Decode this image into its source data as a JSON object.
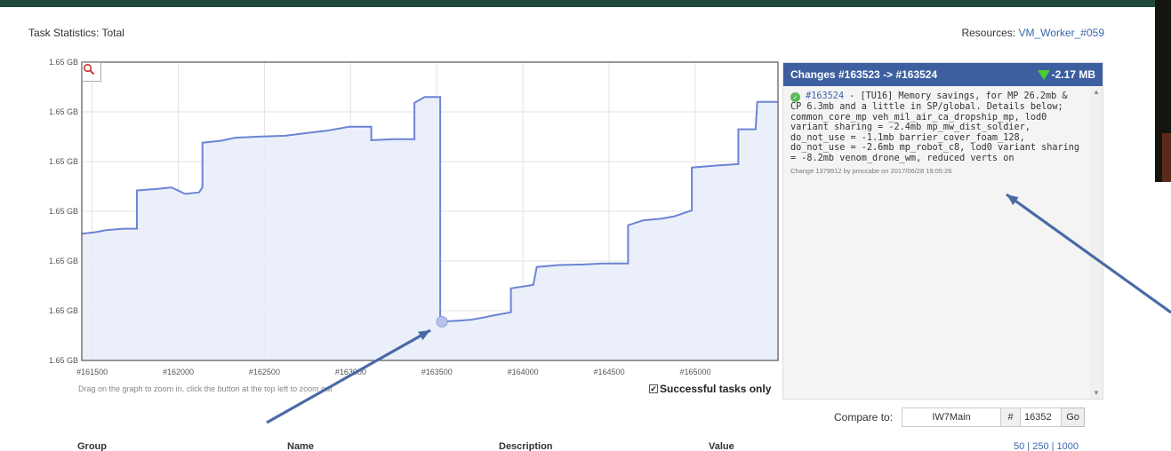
{
  "page": {
    "title": "Task Statistics: Total",
    "resources_label": "Resources:",
    "resources_value": "VM_Worker_#059"
  },
  "chart_data": {
    "type": "line",
    "title": "",
    "xlabel": "",
    "ylabel": "",
    "x_ticks": [
      "#161500",
      "#162000",
      "#162500",
      "#163000",
      "#163500",
      "#164000",
      "#164500",
      "#165000"
    ],
    "x_tick_values": [
      161500,
      162000,
      162500,
      163000,
      163500,
      164000,
      164500,
      165000
    ],
    "y_ticks": [
      "1.65 GB",
      "1.65 GB",
      "1.65 GB",
      "1.65 GB",
      "1.65 GB",
      "1.65 GB",
      "1.65 GB"
    ],
    "y_tick_values": [
      0,
      1,
      2,
      3,
      4,
      5,
      6
    ],
    "xlim": [
      161440,
      165480
    ],
    "ylim": [
      0,
      6
    ],
    "grid": true,
    "step": true,
    "series": [
      {
        "values": [
          [
            161440,
            2.55
          ],
          [
            161520,
            2.58
          ],
          [
            161580,
            2.62
          ],
          [
            161680,
            2.65
          ],
          [
            161760,
            2.65
          ],
          [
            161760,
            3.42
          ],
          [
            161880,
            3.45
          ],
          [
            161960,
            3.48
          ],
          [
            162040,
            3.35
          ],
          [
            162120,
            3.38
          ],
          [
            162140,
            3.48
          ],
          [
            162140,
            4.38
          ],
          [
            162250,
            4.42
          ],
          [
            162330,
            4.48
          ],
          [
            162450,
            4.5
          ],
          [
            162620,
            4.52
          ],
          [
            162760,
            4.58
          ],
          [
            162860,
            4.62
          ],
          [
            162990,
            4.7
          ],
          [
            163120,
            4.7
          ],
          [
            163120,
            4.43
          ],
          [
            163250,
            4.45
          ],
          [
            163370,
            4.45
          ],
          [
            163370,
            5.18
          ],
          [
            163430,
            5.3
          ],
          [
            163520,
            5.3
          ],
          [
            163520,
            0.78
          ],
          [
            163620,
            0.8
          ],
          [
            163700,
            0.82
          ],
          [
            163780,
            0.87
          ],
          [
            163820,
            0.9
          ],
          [
            163930,
            0.97
          ],
          [
            163930,
            1.45
          ],
          [
            164060,
            1.52
          ],
          [
            164080,
            1.88
          ],
          [
            164210,
            1.92
          ],
          [
            164350,
            1.93
          ],
          [
            164470,
            1.95
          ],
          [
            164610,
            1.95
          ],
          [
            164610,
            2.72
          ],
          [
            164700,
            2.82
          ],
          [
            164800,
            2.85
          ],
          [
            164880,
            2.9
          ],
          [
            164980,
            3.02
          ],
          [
            164980,
            3.88
          ],
          [
            165120,
            3.92
          ],
          [
            165250,
            3.95
          ],
          [
            165250,
            4.65
          ],
          [
            165350,
            4.65
          ],
          [
            165360,
            5.2
          ],
          [
            165480,
            5.2
          ]
        ]
      }
    ],
    "highlight_point": [
      163530,
      0.78
    ],
    "line_color": "#6c84d4",
    "fill_color": "#e6ecf9",
    "hint": "Drag on the graph to zoom in, click the button at the top left to zoom out",
    "successful_label": "Successful tasks only",
    "successful_checked": true
  },
  "changes": {
    "header": "Changes #163523 -> #163524",
    "delta": "-2.17 MB",
    "delta_color": "#4ccc33",
    "link": "#163524",
    "text": " - [TU16] Memory savings, for MP 26.2mb & CP 6.3mb and a little in SP/global. Details below; common_core_mp veh_mil_air_ca_dropship_mp, lod0 variant sharing = -2.4mb mp_mw_dist_soldier, do_not_use = -1.1mb barrier_cover_foam_128, do_not_use = -2.6mb mp_robot_c8, lod0 variant sharing = -8.2mb venom_drone_wm, reduced verts on",
    "meta": "Change 1379912 by pmccabe on 2017/06/28 19:05:26",
    "icon": "check-circle-icon"
  },
  "compare": {
    "label": "Compare to:",
    "branch": "IW7Main",
    "hash": "#",
    "number": "16352",
    "go": "Go"
  },
  "table": {
    "headers": [
      "Group",
      "Name",
      "Description",
      "Value"
    ]
  },
  "pager": "50 | 250 | 1000",
  "annotation_color": "#4a6aa5"
}
